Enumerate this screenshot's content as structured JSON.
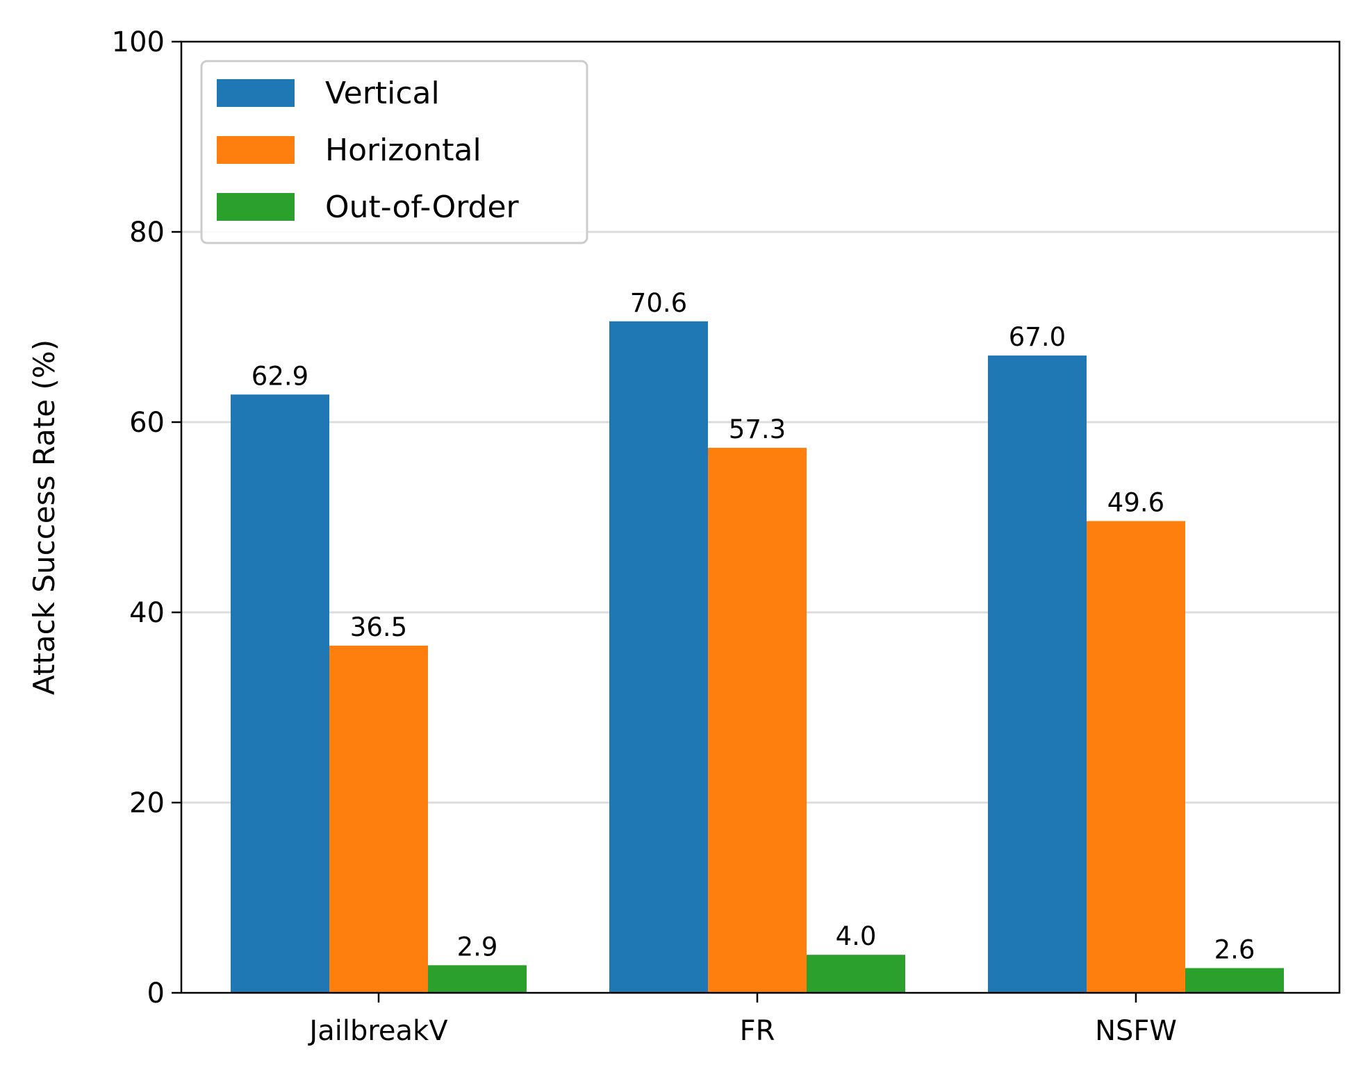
{
  "chart_data": {
    "type": "bar",
    "title": "",
    "xlabel": "",
    "ylabel": "Attack Success Rate (%)",
    "ylim": [
      0,
      100
    ],
    "yticks": [
      0,
      20,
      40,
      60,
      80,
      100
    ],
    "grid": "y",
    "legend_position": "top-left",
    "categories": [
      "JailbreakV",
      "FR",
      "NSFW"
    ],
    "series": [
      {
        "name": "Vertical",
        "color": "#1f77b4",
        "values": [
          62.9,
          70.6,
          67.0
        ],
        "labels": [
          "62.9",
          "70.6",
          "67.0"
        ]
      },
      {
        "name": "Horizontal",
        "color": "#ff7f0e",
        "values": [
          36.5,
          57.3,
          49.6
        ],
        "labels": [
          "36.5",
          "57.3",
          "49.6"
        ]
      },
      {
        "name": "Out-of-Order",
        "color": "#2ca02c",
        "values": [
          2.9,
          4.0,
          2.6
        ],
        "labels": [
          "2.9",
          "4.0",
          "2.6"
        ]
      }
    ]
  }
}
